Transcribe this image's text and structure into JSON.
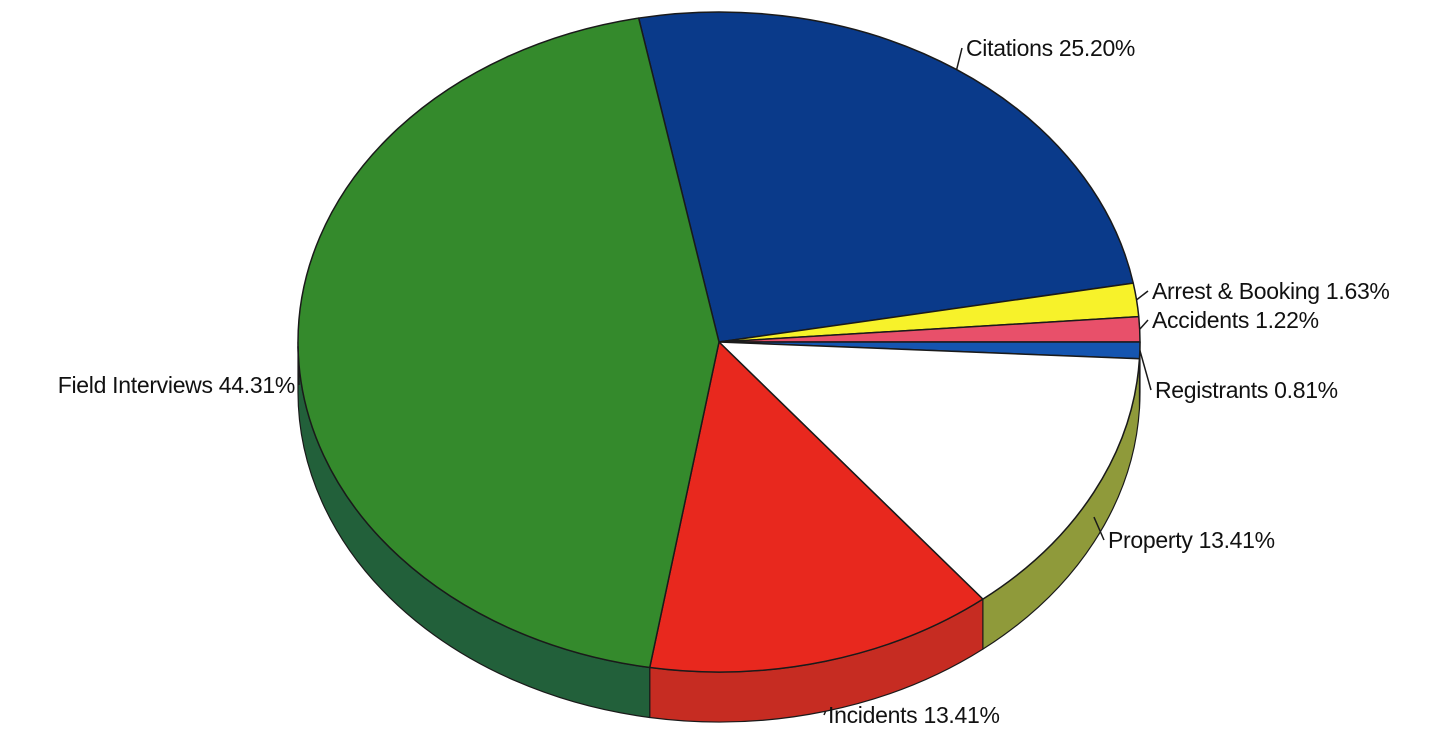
{
  "chart_data": {
    "type": "pie",
    "title": "",
    "style": "3d",
    "slices": [
      {
        "label": "Citations",
        "value_text": "25.20%",
        "value": 25.2,
        "color": "#0a3a8a"
      },
      {
        "label": "Arrest & Booking",
        "value_text": "1.63%",
        "value": 1.63,
        "color": "#f7f22a"
      },
      {
        "label": "Accidents",
        "value_text": "1.22%",
        "value": 1.22,
        "color": "#e8506a"
      },
      {
        "label": "Registrants",
        "value_text": "0.81%",
        "value": 0.81,
        "color": "#1555b0"
      },
      {
        "label": "Property",
        "value_text": "13.41%",
        "value": 13.41,
        "color": "#ffffff"
      },
      {
        "label": "Incidents",
        "value_text": "13.41%",
        "value": 13.41,
        "color": "#e8281e"
      },
      {
        "label": "Field Interviews",
        "value_text": "44.31%",
        "value": 44.31,
        "color": "#348a2c"
      }
    ],
    "side_colors": {
      "Citations": "#062a66",
      "Arrest & Booking": "#b8b21e",
      "Accidents": "#b03a50",
      "Registrants": "#0e3e86",
      "Property": "#8f9a3a",
      "Incidents": "#c62c22",
      "Field Interviews": "#22603a"
    }
  }
}
